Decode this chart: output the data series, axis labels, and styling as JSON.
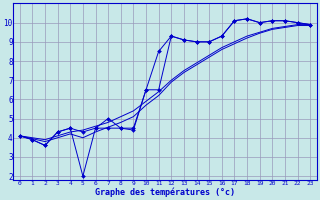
{
  "xlabel": "Graphe des températures (°c)",
  "background_color": "#c8e8e8",
  "grid_color": "#9999bb",
  "line_color": "#0000cc",
  "xlim": [
    -0.5,
    23.5
  ],
  "ylim": [
    1.8,
    11.0
  ],
  "yticks": [
    2,
    3,
    4,
    5,
    6,
    7,
    8,
    9,
    10
  ],
  "xticks": [
    0,
    1,
    2,
    3,
    4,
    5,
    6,
    7,
    8,
    9,
    10,
    11,
    12,
    13,
    14,
    15,
    16,
    17,
    18,
    19,
    20,
    21,
    22,
    23
  ],
  "line1_x": [
    0,
    1,
    2,
    3,
    4,
    5,
    6,
    7,
    8,
    9,
    10,
    11,
    12,
    13,
    14,
    15,
    16,
    17,
    18,
    19,
    20,
    21,
    22,
    23
  ],
  "line1_y": [
    4.1,
    3.9,
    3.6,
    4.3,
    4.5,
    4.3,
    4.5,
    5.0,
    4.5,
    4.5,
    6.5,
    8.5,
    9.3,
    9.1,
    9.0,
    9.0,
    9.3,
    10.1,
    10.2,
    10.0,
    10.1,
    10.1,
    10.0,
    9.9
  ],
  "line2_x": [
    0,
    1,
    2,
    3,
    4,
    5,
    6,
    7,
    8,
    9,
    10,
    11,
    12,
    13,
    14,
    15,
    16,
    17,
    18,
    19,
    20,
    21,
    22,
    23
  ],
  "line2_y": [
    4.1,
    3.9,
    3.6,
    4.3,
    4.5,
    2.0,
    4.5,
    4.5,
    4.5,
    4.4,
    6.5,
    6.5,
    9.3,
    9.1,
    9.0,
    9.0,
    9.3,
    10.1,
    10.2,
    10.0,
    10.1,
    10.1,
    10.0,
    9.9
  ],
  "line3_x": [
    0,
    1,
    2,
    3,
    4,
    5,
    6,
    7,
    8,
    9,
    10,
    11,
    12,
    13,
    14,
    15,
    16,
    17,
    18,
    19,
    20,
    21,
    22,
    23
  ],
  "line3_y": [
    4.1,
    4.0,
    3.9,
    4.1,
    4.3,
    4.4,
    4.6,
    4.8,
    5.1,
    5.4,
    5.9,
    6.4,
    7.0,
    7.5,
    7.9,
    8.3,
    8.7,
    9.0,
    9.3,
    9.5,
    9.7,
    9.8,
    9.9,
    9.9
  ],
  "line4_x": [
    0,
    1,
    2,
    3,
    4,
    5,
    6,
    7,
    8,
    9,
    10,
    11,
    12,
    13,
    14,
    15,
    16,
    17,
    18,
    19,
    20,
    21,
    22,
    23
  ],
  "line4_y": [
    4.1,
    3.95,
    3.8,
    4.0,
    4.2,
    4.0,
    4.3,
    4.55,
    4.8,
    5.1,
    5.7,
    6.2,
    6.9,
    7.4,
    7.8,
    8.2,
    8.6,
    8.9,
    9.2,
    9.45,
    9.65,
    9.75,
    9.85,
    9.85
  ]
}
